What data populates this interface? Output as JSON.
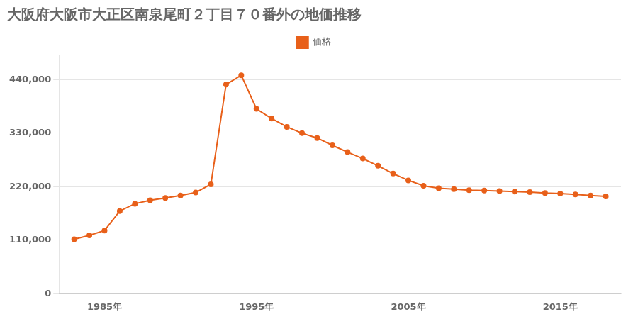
{
  "chart_data": {
    "type": "line",
    "title": "大阪府大阪市大正区南泉尾町２丁目７０番外の地価推移",
    "x": [
      1983,
      1984,
      1985,
      1986,
      1987,
      1988,
      1989,
      1990,
      1991,
      1992,
      1993,
      1994,
      1995,
      1996,
      1997,
      1998,
      1999,
      2000,
      2001,
      2002,
      2003,
      2004,
      2005,
      2006,
      2007,
      2008,
      2009,
      2010,
      2011,
      2012,
      2013,
      2014,
      2015,
      2016,
      2017,
      2018
    ],
    "series": [
      {
        "name": "価格",
        "color": "#e8601a",
        "marker": "circle",
        "line_style": "solid",
        "values": [
          112000,
          120000,
          130000,
          170000,
          185000,
          192000,
          197000,
          202000,
          208000,
          225000,
          430000,
          449000,
          380000,
          360000,
          343000,
          330000,
          320000,
          305000,
          291000,
          278000,
          263000,
          247000,
          233000,
          222000,
          217000,
          215000,
          213000,
          212000,
          211000,
          210000,
          209000,
          207000,
          206000,
          204000,
          202000,
          200000
        ]
      }
    ],
    "xlim": [
      1982,
      2019
    ],
    "xticks": [
      {
        "value": 1985,
        "label": "1985年"
      },
      {
        "value": 1995,
        "label": "1995年"
      },
      {
        "value": 2005,
        "label": "2005年"
      },
      {
        "value": 2015,
        "label": "2015年"
      }
    ],
    "ylim": [
      0,
      490000
    ],
    "yticks": [
      0,
      {
        "value": 110000,
        "label": "110,000"
      },
      {
        "value": 220000,
        "label": "220,000"
      },
      {
        "value": 330000,
        "label": "330,000"
      },
      {
        "value": 440000,
        "label": "440,000"
      }
    ],
    "grid": "y",
    "legend": "top"
  }
}
